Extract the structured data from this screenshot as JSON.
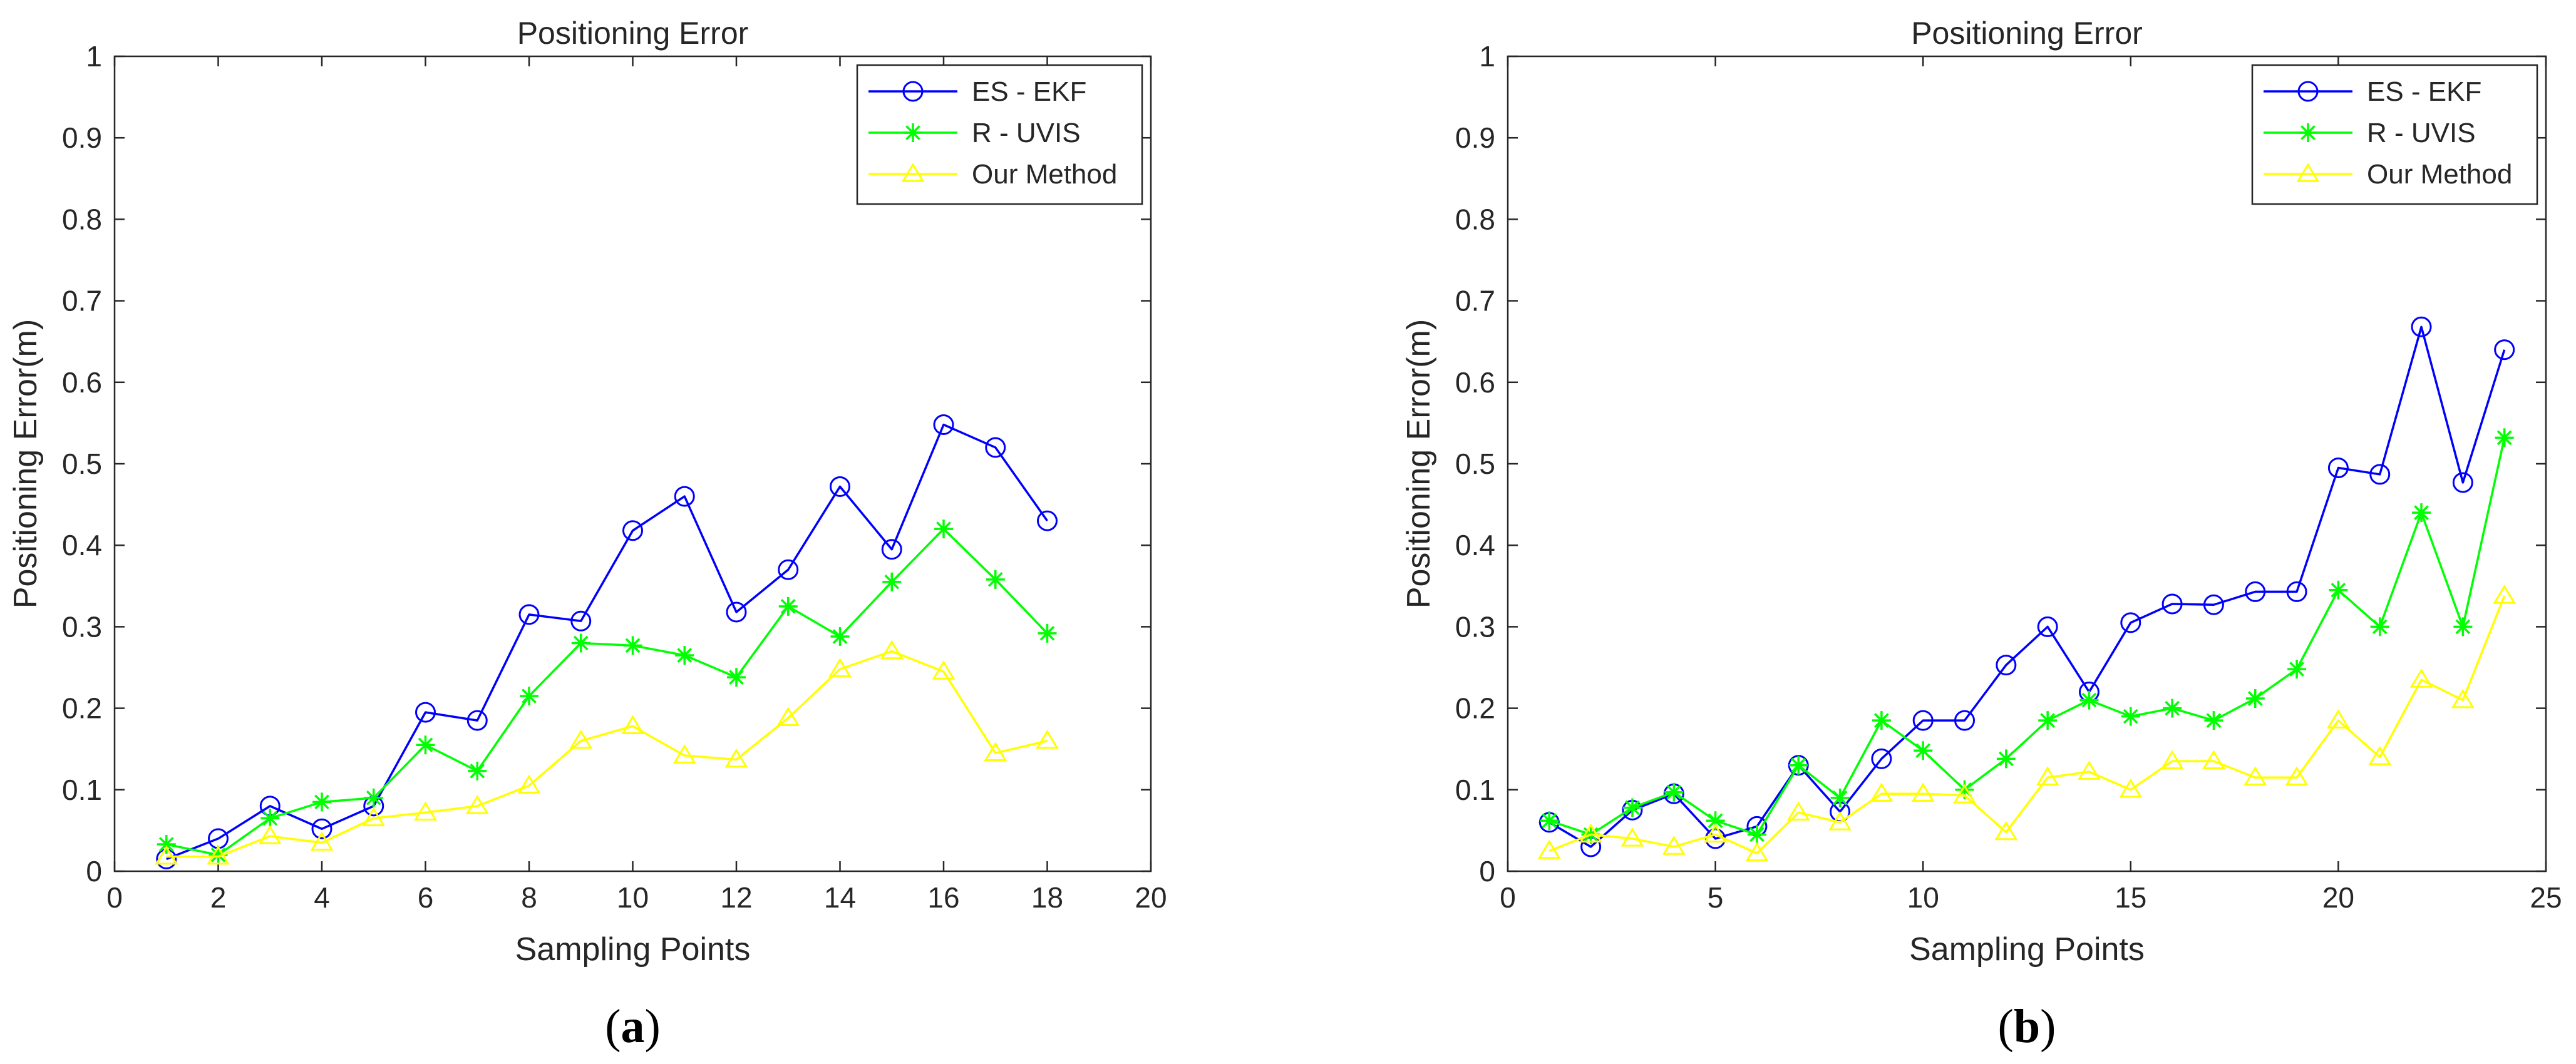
{
  "chart_data": [
    {
      "type": "line",
      "title": "Positioning Error",
      "xlabel": "Sampling Points",
      "ylabel": "Positioning Error(m)",
      "xlim": [
        0,
        20
      ],
      "ylim": [
        0,
        1
      ],
      "xticks": [
        0,
        2,
        4,
        6,
        8,
        10,
        12,
        14,
        16,
        18,
        20
      ],
      "yticks": [
        0,
        0.1,
        0.2,
        0.3,
        0.4,
        0.5,
        0.6,
        0.7,
        0.8,
        0.9,
        1
      ],
      "legend_position": "top-right",
      "caption_letter": "a",
      "x": [
        1,
        2,
        3,
        4,
        5,
        6,
        7,
        8,
        9,
        10,
        11,
        12,
        13,
        14,
        15,
        16,
        17,
        18
      ],
      "series": [
        {
          "name": "ES - EKF",
          "color": "#0000ff",
          "marker": "circle",
          "values": [
            0.015,
            0.04,
            0.08,
            0.052,
            0.08,
            0.195,
            0.185,
            0.315,
            0.307,
            0.418,
            0.46,
            0.318,
            0.37,
            0.472,
            0.395,
            0.548,
            0.52,
            0.43
          ]
        },
        {
          "name": "R - UVIS",
          "color": "#00ff00",
          "marker": "star",
          "values": [
            0.033,
            0.02,
            0.065,
            0.085,
            0.09,
            0.155,
            0.123,
            0.215,
            0.28,
            0.277,
            0.265,
            0.238,
            0.325,
            0.288,
            0.355,
            0.42,
            0.358,
            0.292
          ]
        },
        {
          "name": "Our Method",
          "color": "#ffff00",
          "marker": "triangle",
          "values": [
            0.018,
            0.018,
            0.043,
            0.035,
            0.065,
            0.072,
            0.08,
            0.105,
            0.16,
            0.178,
            0.142,
            0.137,
            0.188,
            0.248,
            0.27,
            0.245,
            0.145,
            0.16
          ]
        }
      ]
    },
    {
      "type": "line",
      "title": "Positioning Error",
      "xlabel": "Sampling Points",
      "ylabel": "Positioning Error(m)",
      "xlim": [
        0,
        25
      ],
      "ylim": [
        0,
        1
      ],
      "xticks": [
        0,
        5,
        10,
        15,
        20,
        25
      ],
      "yticks": [
        0,
        0.1,
        0.2,
        0.3,
        0.4,
        0.5,
        0.6,
        0.7,
        0.8,
        0.9,
        1
      ],
      "legend_position": "top-right",
      "caption_letter": "b",
      "x": [
        1,
        2,
        3,
        4,
        5,
        6,
        7,
        8,
        9,
        10,
        11,
        12,
        13,
        14,
        15,
        16,
        17,
        18,
        19,
        20,
        21,
        22,
        23,
        24
      ],
      "series": [
        {
          "name": "ES - EKF",
          "color": "#0000ff",
          "marker": "circle",
          "values": [
            0.06,
            0.03,
            0.075,
            0.095,
            0.04,
            0.055,
            0.13,
            0.073,
            0.138,
            0.185,
            0.185,
            0.253,
            0.3,
            0.22,
            0.305,
            0.328,
            0.327,
            0.343,
            0.343,
            0.495,
            0.487,
            0.668,
            0.477,
            0.64
          ]
        },
        {
          "name": "R - UVIS",
          "color": "#00ff00",
          "marker": "star",
          "values": [
            0.062,
            0.045,
            0.078,
            0.097,
            0.062,
            0.045,
            0.13,
            0.09,
            0.185,
            0.148,
            0.1,
            0.138,
            0.185,
            0.21,
            0.19,
            0.2,
            0.185,
            0.212,
            0.248,
            0.345,
            0.3,
            0.44,
            0.3,
            0.532
          ]
        },
        {
          "name": "Our Method",
          "color": "#ffff00",
          "marker": "triangle",
          "values": [
            0.025,
            0.045,
            0.04,
            0.03,
            0.045,
            0.022,
            0.072,
            0.06,
            0.095,
            0.095,
            0.093,
            0.048,
            0.115,
            0.122,
            0.1,
            0.135,
            0.135,
            0.115,
            0.115,
            0.185,
            0.14,
            0.235,
            0.21,
            0.338
          ]
        }
      ]
    }
  ]
}
